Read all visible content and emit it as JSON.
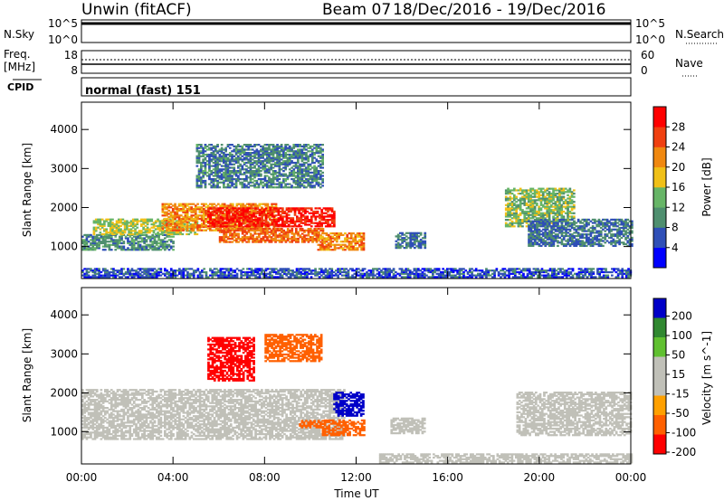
{
  "header": {
    "station": "Unwin (fitACF)",
    "beam": "Beam 07",
    "date_range": "18/Dec/2016 - 19/Dec/2016"
  },
  "strips": {
    "nsky_label": "N.Sky",
    "nsky_top_tick": "10^5",
    "nsky_bottom_tick": "10^0",
    "nsearch_label": "N.Search",
    "nsearch_top_tick": "10^5",
    "nsearch_bottom_tick": "10^0",
    "freq_label_line1": "Freq.",
    "freq_label_line2": "[MHz]",
    "freq_top_tick": "18",
    "freq_bottom_tick": "8",
    "nave_label": "Nave",
    "nave_top_tick": "60",
    "nave_bottom_tick": "0",
    "cpid_label": "CPID",
    "cpid_text": "normal (fast) 151"
  },
  "colors": {
    "power": [
      "#0000ff",
      "#2f4fb7",
      "#4f8f6f",
      "#67b567",
      "#f0c018",
      "#f08810",
      "#f04010",
      "#ff0000"
    ],
    "velocity": [
      "#ff0000",
      "#ff6000",
      "#ffa000",
      "#c0c0b8",
      "#c0c0b8",
      "#60c030",
      "#308830",
      "#0000c8"
    ]
  },
  "chart_data": [
    {
      "type": "heatmap",
      "quantity": "power",
      "ylabel": "Slant Range [km]",
      "xlabel": "",
      "x_ticks": [
        "00:00",
        "04:00",
        "08:00",
        "12:00",
        "16:00",
        "20:00",
        "00:00"
      ],
      "y_ticks": [
        "1000",
        "2000",
        "3000",
        "4000"
      ],
      "xlim": [
        0,
        24
      ],
      "ylim": [
        180,
        4700
      ],
      "colorbar_label": "Power [dB]",
      "colorbar_ticks": [
        "4",
        "8",
        "12",
        "16",
        "20",
        "24",
        "28"
      ],
      "colorbar_range": [
        0,
        32
      ],
      "echo_regions": [
        {
          "t": [
            0.0,
            4.0
          ],
          "range": [
            900,
            1300
          ],
          "value": 10
        },
        {
          "t": [
            0.5,
            5.0
          ],
          "range": [
            1300,
            1700
          ],
          "value": 16
        },
        {
          "t": [
            3.5,
            8.5
          ],
          "range": [
            1400,
            2100
          ],
          "value": 22
        },
        {
          "t": [
            5.5,
            11.0
          ],
          "range": [
            1500,
            2000
          ],
          "value": 29
        },
        {
          "t": [
            6.0,
            10.5
          ],
          "range": [
            1100,
            1450
          ],
          "value": 24
        },
        {
          "t": [
            10.3,
            12.3
          ],
          "range": [
            900,
            1350
          ],
          "value": 22
        },
        {
          "t": [
            5.0,
            10.5
          ],
          "range": [
            2500,
            3600
          ],
          "value": 9
        },
        {
          "t": [
            13.7,
            15.0
          ],
          "range": [
            950,
            1350
          ],
          "value": 8
        },
        {
          "t": [
            18.5,
            21.5
          ],
          "range": [
            1500,
            2500
          ],
          "value": 14
        },
        {
          "t": [
            19.5,
            24.0
          ],
          "range": [
            1000,
            1700
          ],
          "value": 8
        },
        {
          "t": [
            0.0,
            24.0
          ],
          "range": [
            200,
            450
          ],
          "value": 6
        }
      ]
    },
    {
      "type": "heatmap",
      "quantity": "velocity",
      "ylabel": "Slant Range [km]",
      "xlabel": "Time UT",
      "x_ticks": [
        "00:00",
        "04:00",
        "08:00",
        "12:00",
        "16:00",
        "20:00",
        "00:00"
      ],
      "y_ticks": [
        "1000",
        "2000",
        "3000",
        "4000"
      ],
      "xlim": [
        0,
        24
      ],
      "ylim": [
        180,
        4700
      ],
      "colorbar_label": "Velocity [m s^-1]",
      "colorbar_ticks": [
        "200",
        "100",
        "50",
        "15",
        "-15",
        "-50",
        "-100",
        "-200"
      ],
      "echo_regions": [
        {
          "t": [
            0.0,
            11.5
          ],
          "range": [
            800,
            2100
          ],
          "value": 0
        },
        {
          "t": [
            11.0,
            12.3
          ],
          "range": [
            1400,
            2000
          ],
          "value": 220
        },
        {
          "t": [
            10.5,
            12.3
          ],
          "range": [
            900,
            1300
          ],
          "value": -90
        },
        {
          "t": [
            9.5,
            10.5
          ],
          "range": [
            1100,
            1300
          ],
          "value": -60
        },
        {
          "t": [
            5.5,
            7.5
          ],
          "range": [
            2300,
            3400
          ],
          "value": -220
        },
        {
          "t": [
            8.0,
            10.5
          ],
          "range": [
            2800,
            3500
          ],
          "value": -80
        },
        {
          "t": [
            13.5,
            15.0
          ],
          "range": [
            950,
            1350
          ],
          "value": 0
        },
        {
          "t": [
            19.0,
            24.0
          ],
          "range": [
            900,
            2000
          ],
          "value": 0
        },
        {
          "t": [
            13.0,
            24.0
          ],
          "range": [
            200,
            450
          ],
          "value": 30
        }
      ]
    }
  ]
}
